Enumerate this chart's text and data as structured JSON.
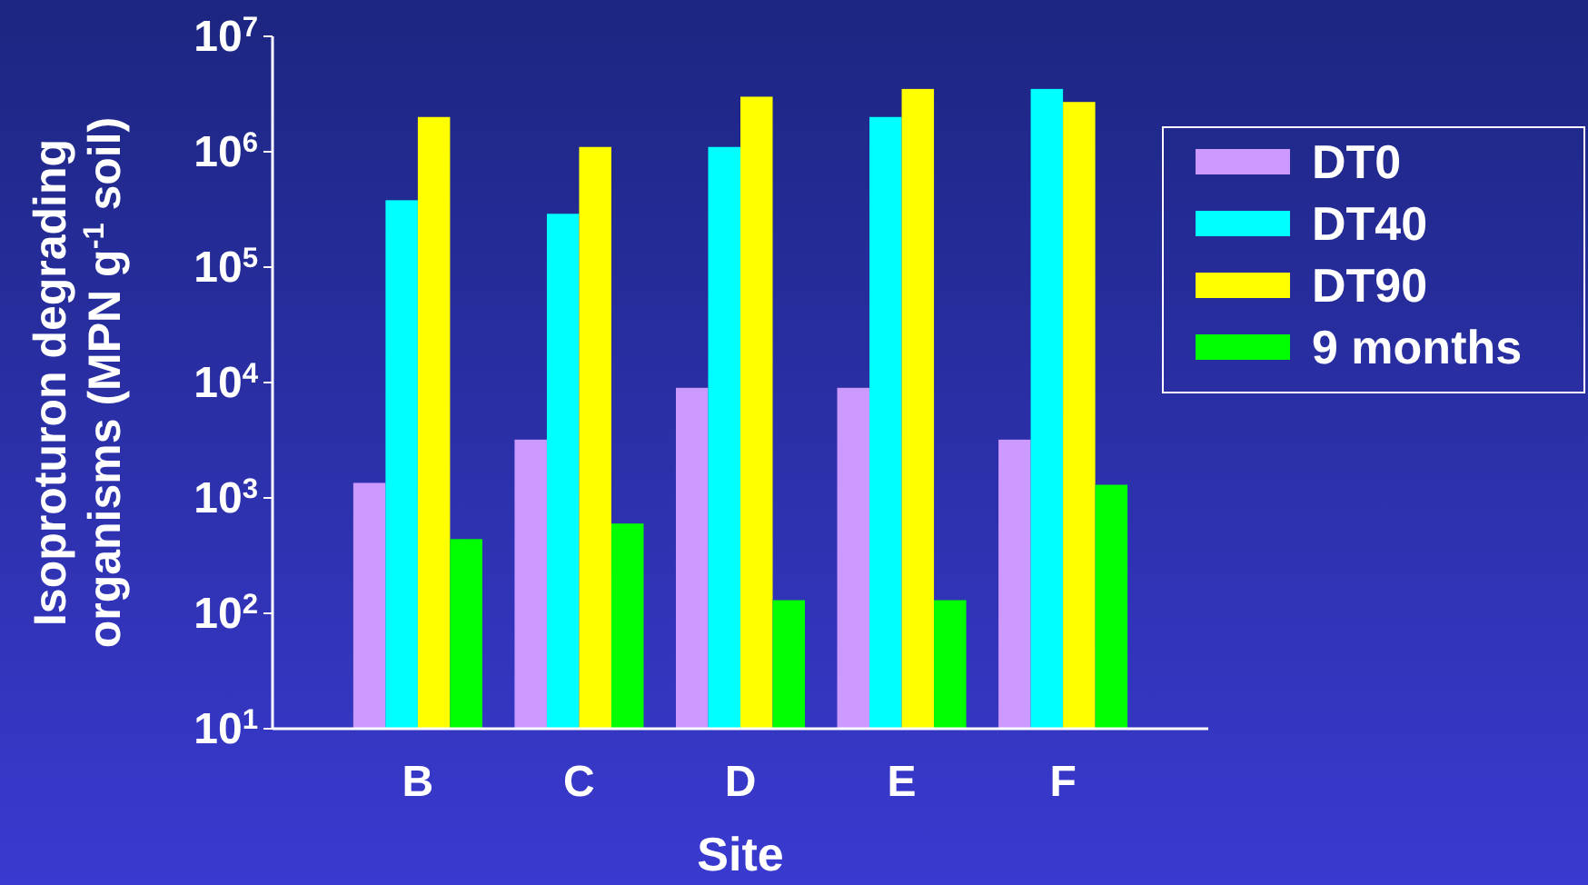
{
  "chart_data": {
    "type": "bar",
    "xlabel": "Site",
    "ylabel": "Isoproturon degrading organisms (MPN g$^{-1}$ soil)",
    "categories": [
      "B",
      "C",
      "D",
      "E",
      "F"
    ],
    "series": [
      {
        "name": "DT0",
        "color": "#cc99ff",
        "values": [
          1350,
          3200,
          9000,
          9000,
          3200
        ]
      },
      {
        "name": "DT40",
        "color": "#00ffff",
        "values": [
          380000,
          290000,
          1100000,
          2000000,
          3500000
        ]
      },
      {
        "name": "DT90",
        "color": "#ffff00",
        "values": [
          2000000,
          1100000,
          3000000,
          3500000,
          2700000
        ]
      },
      {
        "name": "9 months",
        "color": "#00ff00",
        "values": [
          440,
          600,
          130,
          130,
          1300
        ]
      }
    ],
    "log": "y",
    "ylim": [
      10,
      10000000
    ],
    "yticks": [
      {
        "value": 10,
        "label": "10$^{1}$"
      },
      {
        "value": 100,
        "label": "10$^{2}$"
      },
      {
        "value": 1000,
        "label": "10$^{3}$"
      },
      {
        "value": 10000,
        "label": "10$^{4}$"
      },
      {
        "value": 100000,
        "label": "10$^{5}$"
      },
      {
        "value": 1000000,
        "label": "10$^{6}$"
      },
      {
        "value": 10000000,
        "label": "10$^{7}$"
      }
    ],
    "grid": false,
    "legend": "right"
  }
}
